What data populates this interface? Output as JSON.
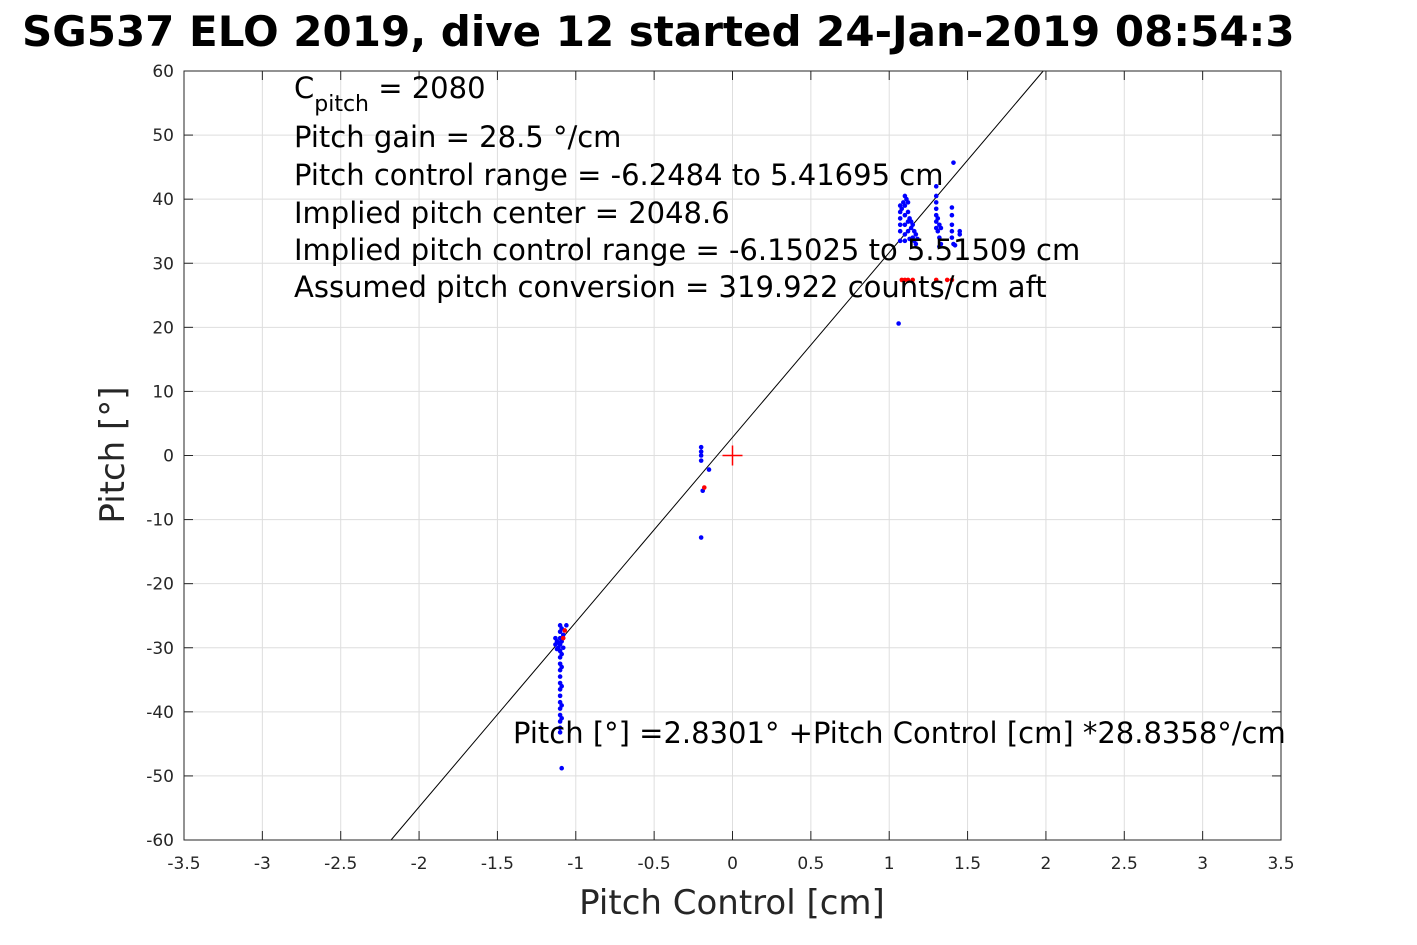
{
  "title": "SG537 ELO 2019, dive 12 started 24-Jan-2019 08:54:3",
  "chart_data": {
    "type": "scatter",
    "title": "SG537 ELO 2019, dive 12 started 24-Jan-2019 08:54:3",
    "xlabel": "Pitch Control [cm]",
    "ylabel": "Pitch [°]",
    "xlim": [
      -3.5,
      3.5
    ],
    "ylim": [
      -60,
      60
    ],
    "grid": true,
    "xticks": [
      -3.5,
      -3,
      -2.5,
      -2,
      -1.5,
      -1,
      -0.5,
      0,
      0.5,
      1,
      1.5,
      2,
      2.5,
      3,
      3.5
    ],
    "xtick_labels": [
      "-3.5",
      "-3",
      "-2.5",
      "-2",
      "-1.5",
      "-1",
      "-0.5",
      "0",
      "0.5",
      "1",
      "1.5",
      "2",
      "2.5",
      "3",
      "3.5"
    ],
    "yticks": [
      -60,
      -50,
      -40,
      -30,
      -20,
      -10,
      0,
      10,
      20,
      30,
      40,
      50,
      60
    ],
    "ytick_labels": [
      "-60",
      "-50",
      "-40",
      "-30",
      "-20",
      "-10",
      "0",
      "10",
      "20",
      "30",
      "40",
      "50",
      "60"
    ],
    "fit_line": {
      "intercept": 2.8301,
      "slope": 28.8358,
      "color": "#000000"
    },
    "marker": {
      "x": 0,
      "y": 0,
      "color": "#ff0000",
      "symbol": "+"
    },
    "series": [
      {
        "color": "#0000ff",
        "points": [
          [
            -1.13,
            -28.5
          ],
          [
            -1.13,
            -29.5
          ],
          [
            -1.12,
            -30.2
          ],
          [
            -1.12,
            -29.0
          ],
          [
            -1.11,
            -30.0
          ],
          [
            -1.11,
            -29.2
          ],
          [
            -1.1,
            -26.5
          ],
          [
            -1.1,
            -27.5
          ],
          [
            -1.1,
            -28.5
          ],
          [
            -1.1,
            -29.5
          ],
          [
            -1.1,
            -30.5
          ],
          [
            -1.1,
            -31.5
          ],
          [
            -1.1,
            -32.5
          ],
          [
            -1.1,
            -33.5
          ],
          [
            -1.1,
            -34.5
          ],
          [
            -1.1,
            -35.5
          ],
          [
            -1.1,
            -36.5
          ],
          [
            -1.1,
            -37.5
          ],
          [
            -1.1,
            -38.5
          ],
          [
            -1.1,
            -39.5
          ],
          [
            -1.1,
            -40.5
          ],
          [
            -1.1,
            -41.5
          ],
          [
            -1.1,
            -42.5
          ],
          [
            -1.1,
            -43.2
          ],
          [
            -1.09,
            -27.0
          ],
          [
            -1.09,
            -29.0
          ],
          [
            -1.09,
            -31.0
          ],
          [
            -1.09,
            -33.0
          ],
          [
            -1.09,
            -36.0
          ],
          [
            -1.09,
            -39.0
          ],
          [
            -1.09,
            -41.0
          ],
          [
            -1.08,
            -30.0
          ],
          [
            -1.08,
            -28.0
          ],
          [
            -1.06,
            -26.5
          ],
          [
            -1.09,
            -48.8
          ],
          [
            -0.2,
            1.3
          ],
          [
            -0.2,
            0.6
          ],
          [
            -0.2,
            0.0
          ],
          [
            -0.2,
            -0.8
          ],
          [
            -0.19,
            -5.5
          ],
          [
            -0.15,
            -2.2
          ],
          [
            -0.2,
            -12.8
          ],
          [
            1.07,
            39.0
          ],
          [
            1.07,
            38.0
          ],
          [
            1.07,
            37.0
          ],
          [
            1.07,
            36.0
          ],
          [
            1.07,
            35.0
          ],
          [
            1.07,
            33.5
          ],
          [
            1.06,
            20.6
          ],
          [
            1.08,
            38.5
          ],
          [
            1.09,
            39.5
          ],
          [
            1.1,
            40.5
          ],
          [
            1.1,
            39.0
          ],
          [
            1.1,
            37.5
          ],
          [
            1.1,
            36.0
          ],
          [
            1.1,
            34.5
          ],
          [
            1.1,
            33.5
          ],
          [
            1.11,
            40.0
          ],
          [
            1.12,
            39.5
          ],
          [
            1.12,
            38.0
          ],
          [
            1.12,
            36.5
          ],
          [
            1.12,
            35.0
          ],
          [
            1.13,
            33.8
          ],
          [
            1.13,
            37.0
          ],
          [
            1.14,
            36.5
          ],
          [
            1.14,
            35.5
          ],
          [
            1.15,
            34.0
          ],
          [
            1.15,
            36.0
          ],
          [
            1.16,
            35.0
          ],
          [
            1.16,
            33.5
          ],
          [
            1.17,
            34.5
          ],
          [
            1.17,
            33.0
          ],
          [
            1.18,
            33.8
          ],
          [
            1.3,
            42.0
          ],
          [
            1.3,
            40.5
          ],
          [
            1.3,
            39.5
          ],
          [
            1.3,
            38.5
          ],
          [
            1.3,
            37.5
          ],
          [
            1.3,
            36.5
          ],
          [
            1.3,
            35.5
          ],
          [
            1.31,
            37.0
          ],
          [
            1.31,
            35.0
          ],
          [
            1.32,
            36.0
          ],
          [
            1.32,
            34.0
          ],
          [
            1.33,
            35.5
          ],
          [
            1.33,
            33.0
          ],
          [
            1.32,
            32.6
          ],
          [
            1.4,
            38.7
          ],
          [
            1.4,
            37.5
          ],
          [
            1.4,
            36.0
          ],
          [
            1.4,
            35.0
          ],
          [
            1.4,
            34.0
          ],
          [
            1.41,
            33.0
          ],
          [
            1.41,
            45.7
          ],
          [
            1.45,
            35.0
          ],
          [
            1.45,
            34.5
          ],
          [
            1.42,
            32.8
          ]
        ]
      },
      {
        "color": "#ff0000",
        "points": [
          [
            -1.07,
            -27.3
          ],
          [
            -1.08,
            -28.5
          ],
          [
            -0.18,
            -5.0
          ],
          [
            1.08,
            27.4
          ],
          [
            1.1,
            27.4
          ],
          [
            1.12,
            27.4
          ],
          [
            1.15,
            27.4
          ],
          [
            1.3,
            27.4
          ],
          [
            1.37,
            27.4
          ],
          [
            1.4,
            27.4
          ]
        ]
      }
    ],
    "annotations": {
      "cpitch_symbol": "C",
      "cpitch_subscript": "pitch",
      "cpitch_value": " = 2080",
      "gain": "Pitch gain = 28.5 °/cm",
      "control_range": "Pitch control range = -6.2484 to 5.41695 cm",
      "implied_center": "Implied pitch center = 2048.6",
      "implied_range": "Implied pitch control range = -6.15025 to 5.51509 cm",
      "conversion": "Assumed pitch conversion = 319.922 counts/cm aft",
      "fit_equation": "Pitch [°] =2.8301° +Pitch Control [cm] *28.8358°/cm"
    }
  }
}
